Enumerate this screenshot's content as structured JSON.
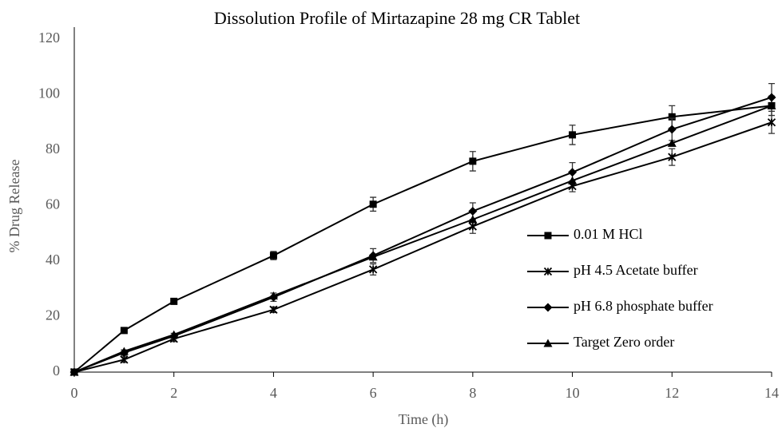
{
  "chart_data": {
    "type": "line",
    "title": "Dissolution Profile of Mirtazapine 28 mg CR Tablet",
    "x_label": "Time (h)",
    "y_label": "% Drug Release",
    "x": [
      0,
      1,
      2,
      4,
      6,
      8,
      10,
      12,
      14
    ],
    "xlim": [
      0,
      14
    ],
    "xticks": [
      0,
      2,
      4,
      6,
      8,
      10,
      12,
      14
    ],
    "ylim": [
      0,
      120
    ],
    "yticks": [
      0,
      20,
      40,
      60,
      80,
      100,
      120
    ],
    "grid": false,
    "legend": "right",
    "series": [
      {
        "name": "0.01 M HCl",
        "color": "#000000",
        "marker": "square",
        "values": [
          0,
          15,
          25.5,
          42,
          60.5,
          76,
          85.5,
          92,
          96
        ],
        "errors": [
          0,
          1,
          1,
          1.5,
          2.5,
          3.5,
          3.5,
          4,
          3.5
        ]
      },
      {
        "name": "pH 4.5 Acetate buffer",
        "color": "#000000",
        "marker": "star",
        "values": [
          0,
          4.5,
          12,
          22.5,
          37,
          52.5,
          67,
          77.5,
          90
        ],
        "errors": [
          0,
          1,
          1,
          1,
          2,
          2.5,
          2,
          3,
          4
        ]
      },
      {
        "name": "pH 6.8 phosphate buffer",
        "color": "#000000",
        "marker": "diamond",
        "values": [
          0,
          7,
          13,
          27,
          42,
          58,
          72,
          87.5,
          99
        ],
        "errors": [
          0,
          1,
          1,
          1.5,
          2.5,
          3,
          3.5,
          4,
          5
        ]
      },
      {
        "name": "Target Zero order",
        "color": "#000000",
        "marker": "triangle",
        "values": [
          0,
          7.5,
          13.5,
          27.5,
          41.5,
          55,
          69,
          82.5,
          96
        ]
      }
    ]
  }
}
